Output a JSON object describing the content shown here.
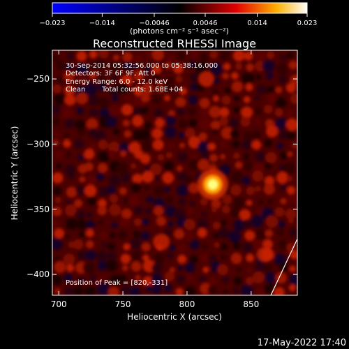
{
  "chart_data": {
    "type": "heatmap",
    "title": "Reconstructed RHESSI Image",
    "xlabel": "Heliocentric X (arcsec)",
    "ylabel": "Heliocentric Y (arcsec)",
    "xlim": [
      695,
      886
    ],
    "ylim": [
      -416,
      -228
    ],
    "x_ticks": [
      700,
      750,
      800,
      850
    ],
    "y_ticks": [
      -250,
      -300,
      -350,
      -400
    ],
    "colorbar": {
      "range": [
        -0.023,
        0.023
      ],
      "tick_values": [
        -0.023,
        -0.014,
        -0.0046,
        0.0046,
        0.014,
        0.023
      ],
      "tick_labels": [
        "−0.023",
        "−0.014",
        "−0.0046",
        "0.0046",
        "0.014",
        "0.023"
      ],
      "unit_label": "(photons cm⁻² s⁻¹ asec⁻²)",
      "colors": [
        "#0000ff",
        "#000000",
        "#ff0000",
        "#ffd000",
        "#ffffff"
      ]
    },
    "annotations": {
      "time": "30-Sep-2014 05:32:56.000 to 05:38:16.000",
      "detectors": "Detectors: 3F 6F 9F, Att 0",
      "energy": "Energy Range: 6.0 - 12.0 keV",
      "algorithm": "Clean",
      "counts": "Total counts: 1.68E+04",
      "peak": "Position of Peak = [820,-331]"
    },
    "peak": {
      "x": 820,
      "y": -331,
      "value": 0.023
    },
    "secondary_sources": [
      {
        "x": 780,
        "y": -375,
        "value": 0.009
      },
      {
        "x": 815,
        "y": -250,
        "value": 0.008
      },
      {
        "x": 860,
        "y": -385,
        "value": 0.006
      }
    ],
    "footer_date": "17-May-2022 17:40"
  },
  "colors": {
    "background": "#000000",
    "foreground": "#ffffff",
    "limb_line": "#ffffff"
  }
}
